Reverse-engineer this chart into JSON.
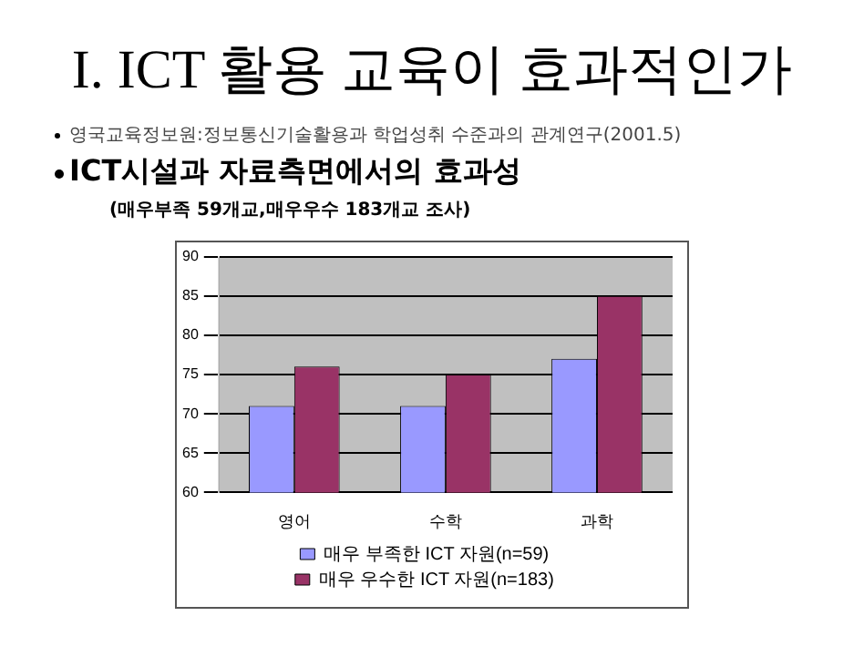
{
  "chart_data": {
    "type": "bar",
    "title": "I. ICT 활용 교육이 효과적인가",
    "subtitle": "ICT시설과 자료측면에서의 효과성",
    "annotations": [
      "영국교육정보원:정보통신기술활용과 학업성취 수준과의 관계연구(2001.5)",
      "(매우부족 59개교,매우우수 183개교 조사)"
    ],
    "categories": [
      "영어",
      "수학",
      "과학"
    ],
    "series": [
      {
        "name": "매우 부족한 ICT 자원(n=59)",
        "color": "#9999ff",
        "values": [
          71,
          71,
          77
        ]
      },
      {
        "name": "매우 우수한 ICT 자원(n=183)",
        "color": "#993366",
        "values": [
          76,
          75,
          85
        ]
      }
    ],
    "ylim": [
      60,
      90
    ],
    "yticks": [
      60,
      65,
      70,
      75,
      80,
      85,
      90
    ],
    "grid": "y",
    "legend": "bottom"
  }
}
